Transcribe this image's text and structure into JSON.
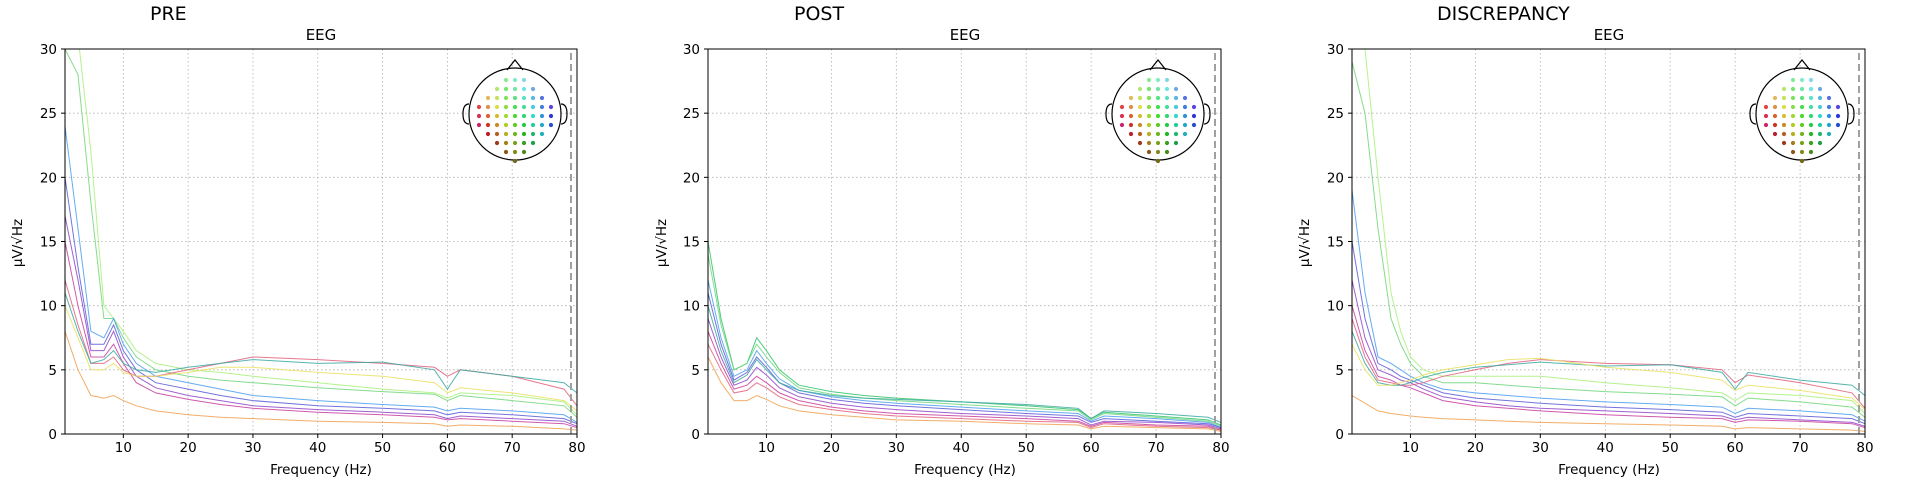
{
  "charts": [
    {
      "title": "PRE"
    },
    {
      "title": "POST"
    },
    {
      "title": "DISCREPANCY"
    }
  ],
  "chart_data": [
    {
      "type": "line",
      "title": "PRE",
      "subtitle": "EEG",
      "xlabel": "Frequency (Hz)",
      "ylabel": "µV/√Hz",
      "xlim": [
        1,
        80
      ],
      "ylim": [
        0,
        30
      ],
      "xticks": [
        "10",
        "20",
        "30",
        "40",
        "50",
        "60",
        "70",
        "80"
      ],
      "yticks": [
        "0",
        "5",
        "10",
        "15",
        "20",
        "25",
        "30"
      ],
      "grid": true,
      "legend": "sensor-location-inset top-right",
      "x": [
        1,
        3,
        5,
        7,
        8.5,
        10,
        12,
        15,
        20,
        25,
        30,
        40,
        50,
        58,
        60,
        62,
        70,
        78,
        80
      ],
      "series": [
        {
          "color": "#a8f07a",
          "values": [
            31,
            31,
            22,
            10,
            9,
            8,
            6.5,
            5.5,
            5,
            4.8,
            4.5,
            4,
            3.5,
            3.2,
            2.8,
            3.2,
            3,
            2.5,
            1.5
          ]
        },
        {
          "color": "#6fd67a",
          "values": [
            30,
            28,
            18,
            9,
            9,
            7.5,
            6,
            5,
            4.5,
            4.2,
            4,
            3.6,
            3.3,
            3.1,
            2.6,
            3,
            2.6,
            2.2,
            1.3
          ]
        },
        {
          "color": "#4a9ef0",
          "values": [
            24,
            16,
            8,
            7.5,
            9,
            7,
            5.5,
            4.5,
            4,
            3.5,
            3,
            2.6,
            2.3,
            2.1,
            1.8,
            2,
            1.8,
            1.5,
            0.9
          ]
        },
        {
          "color": "#5a5ad8",
          "values": [
            20,
            13,
            7,
            7,
            8.5,
            6.5,
            5,
            4,
            3.5,
            3,
            2.6,
            2.2,
            2,
            1.8,
            1.5,
            1.7,
            1.5,
            1.2,
            0.8
          ]
        },
        {
          "color": "#8e44c8",
          "values": [
            17,
            12,
            6.5,
            6.5,
            8,
            6,
            4.5,
            3.6,
            3,
            2.6,
            2.2,
            1.9,
            1.7,
            1.5,
            1.2,
            1.4,
            1.2,
            1,
            0.6
          ]
        },
        {
          "color": "#c83c9e",
          "values": [
            15,
            10,
            6,
            6,
            7,
            5.5,
            4,
            3.2,
            2.7,
            2.3,
            2,
            1.7,
            1.5,
            1.3,
            1.1,
            1.2,
            1,
            0.8,
            0.5
          ]
        },
        {
          "color": "#e0607a",
          "values": [
            12,
            8.5,
            5.5,
            5.5,
            6,
            5,
            4.5,
            4.5,
            5,
            5.5,
            6,
            5.8,
            5.5,
            5.2,
            4.5,
            5,
            4.5,
            3.5,
            2.2
          ]
        },
        {
          "color": "#38a8a0",
          "values": [
            11,
            8,
            5.5,
            5.8,
            6.5,
            5.5,
            5,
            4.8,
            5.2,
            5.5,
            5.8,
            5.5,
            5.6,
            5,
            3.5,
            5,
            4.5,
            4,
            3.2
          ]
        },
        {
          "color": "#e8e060",
          "values": [
            10,
            7.5,
            5,
            5,
            5.5,
            4.8,
            4.5,
            4.5,
            4.8,
            5.2,
            5.2,
            4.8,
            4.5,
            4,
            3.2,
            3.6,
            3.2,
            2.6,
            1.8
          ]
        },
        {
          "color": "#f0a050",
          "values": [
            8,
            5,
            3,
            2.8,
            3,
            2.6,
            2.2,
            1.8,
            1.5,
            1.3,
            1.2,
            1,
            0.9,
            0.8,
            0.6,
            0.7,
            0.6,
            0.4,
            0.3
          ]
        }
      ]
    },
    {
      "type": "line",
      "title": "POST",
      "subtitle": "EEG",
      "xlabel": "Frequency (Hz)",
      "ylabel": "µV/√Hz",
      "xlim": [
        1,
        80
      ],
      "ylim": [
        0,
        30
      ],
      "xticks": [
        "10",
        "20",
        "30",
        "40",
        "50",
        "60",
        "70",
        "80"
      ],
      "yticks": [
        "0",
        "5",
        "10",
        "15",
        "20",
        "25",
        "30"
      ],
      "grid": true,
      "legend": "sensor-location-inset top-right",
      "x": [
        1,
        3,
        5,
        7,
        8.5,
        10,
        12,
        15,
        20,
        25,
        30,
        40,
        50,
        58,
        60,
        62,
        70,
        78,
        80
      ],
      "series": [
        {
          "color": "#2fc26a",
          "values": [
            15,
            9,
            5,
            5.5,
            7.5,
            6.5,
            5,
            3.8,
            3.3,
            3,
            2.8,
            2.5,
            2.2,
            1.9,
            1.2,
            1.7,
            1.4,
            1.1,
            0.7
          ]
        },
        {
          "color": "#6fd67a",
          "values": [
            14,
            8.5,
            5,
            5.5,
            7,
            6,
            4.8,
            3.6,
            3.1,
            2.8,
            2.6,
            2.3,
            2,
            1.8,
            1.1,
            1.6,
            1.3,
            1,
            0.6
          ]
        },
        {
          "color": "#4a9ef0",
          "values": [
            12,
            7.5,
            4.5,
            5,
            6.5,
            5.5,
            4.3,
            3.4,
            2.9,
            2.6,
            2.4,
            2.1,
            1.8,
            1.6,
            1,
            1.4,
            1.2,
            0.9,
            0.5
          ]
        },
        {
          "color": "#5a5ad8",
          "values": [
            11,
            7,
            4.2,
            4.8,
            6,
            5.2,
            4,
            3.2,
            2.7,
            2.4,
            2.2,
            1.9,
            1.6,
            1.4,
            0.9,
            1.2,
            1,
            0.8,
            0.5
          ]
        },
        {
          "color": "#38a8a0",
          "values": [
            10,
            6.5,
            4,
            4.6,
            5.8,
            5,
            4,
            3.4,
            3,
            2.8,
            2.7,
            2.5,
            2.3,
            2,
            1.2,
            1.8,
            1.6,
            1.3,
            0.9
          ]
        },
        {
          "color": "#8e44c8",
          "values": [
            9,
            6,
            3.8,
            4.2,
            5.2,
            4.6,
            3.6,
            2.9,
            2.4,
            2.1,
            1.9,
            1.6,
            1.4,
            1.2,
            0.7,
            1,
            0.9,
            0.7,
            0.4
          ]
        },
        {
          "color": "#c83c9e",
          "values": [
            8,
            5.5,
            3.5,
            3.8,
            4.5,
            4,
            3.2,
            2.6,
            2.1,
            1.8,
            1.6,
            1.4,
            1.2,
            1,
            0.6,
            0.9,
            0.7,
            0.6,
            0.3
          ]
        },
        {
          "color": "#e0607a",
          "values": [
            7,
            5,
            3.2,
            3.4,
            4,
            3.6,
            2.9,
            2.3,
            1.9,
            1.6,
            1.4,
            1.2,
            1,
            0.9,
            0.5,
            0.8,
            0.6,
            0.5,
            0.3
          ]
        },
        {
          "color": "#f0a050",
          "values": [
            6,
            4,
            2.6,
            2.6,
            3,
            2.7,
            2.2,
            1.8,
            1.5,
            1.3,
            1.1,
            1,
            0.8,
            0.7,
            0.4,
            0.6,
            0.5,
            0.4,
            0.2
          ]
        }
      ]
    },
    {
      "type": "line",
      "title": "DISCREPANCY",
      "subtitle": "EEG",
      "xlabel": "Frequency (Hz)",
      "ylabel": "µV/√Hz",
      "xlim": [
        1,
        80
      ],
      "ylim": [
        0,
        30
      ],
      "xticks": [
        "10",
        "20",
        "30",
        "40",
        "50",
        "60",
        "70",
        "80"
      ],
      "yticks": [
        "0",
        "5",
        "10",
        "15",
        "20",
        "25",
        "30"
      ],
      "grid": true,
      "legend": "sensor-location-inset top-right",
      "x": [
        1,
        3,
        5,
        7,
        8.5,
        10,
        12,
        15,
        20,
        25,
        30,
        40,
        50,
        58,
        60,
        62,
        70,
        78,
        80
      ],
      "series": [
        {
          "color": "#a8f07a",
          "values": [
            31,
            30,
            20,
            11,
            8,
            6,
            5,
            4.5,
            4.5,
            4.5,
            4.5,
            4,
            3.6,
            3.2,
            2.6,
            3.2,
            3,
            2.6,
            1.6
          ]
        },
        {
          "color": "#6fd67a",
          "values": [
            29,
            25,
            16,
            9,
            7,
            5.5,
            4.5,
            4,
            4,
            3.8,
            3.6,
            3.3,
            3.1,
            2.9,
            2.2,
            2.8,
            2.5,
            2.1,
            1.3
          ]
        },
        {
          "color": "#4a9ef0",
          "values": [
            19,
            11,
            6,
            5.5,
            5,
            4.5,
            4,
            3.5,
            3.2,
            3,
            2.8,
            2.5,
            2.3,
            2.1,
            1.6,
            2,
            1.8,
            1.5,
            1
          ]
        },
        {
          "color": "#5a5ad8",
          "values": [
            15,
            9,
            5.5,
            5,
            4.5,
            4.2,
            3.8,
            3.2,
            2.8,
            2.6,
            2.4,
            2.1,
            1.9,
            1.7,
            1.3,
            1.6,
            1.4,
            1.2,
            0.8
          ]
        },
        {
          "color": "#8e44c8",
          "values": [
            12,
            7.5,
            5,
            4.6,
            4.2,
            4,
            3.5,
            2.9,
            2.5,
            2.2,
            2,
            1.8,
            1.6,
            1.4,
            1.1,
            1.3,
            1.1,
            0.9,
            0.6
          ]
        },
        {
          "color": "#c83c9e",
          "values": [
            10,
            6.5,
            4.5,
            4.2,
            3.8,
            3.6,
            3.2,
            2.6,
            2.2,
            2,
            1.8,
            1.5,
            1.3,
            1.2,
            0.9,
            1.1,
            1,
            0.8,
            0.5
          ]
        },
        {
          "color": "#e0607a",
          "values": [
            9,
            6,
            4.2,
            4,
            3.8,
            3.8,
            4,
            4.5,
            5,
            5.5,
            5.8,
            5.5,
            5.4,
            5,
            4,
            4.6,
            4,
            3.2,
            2
          ]
        },
        {
          "color": "#38a8a0",
          "values": [
            8,
            5.5,
            4,
            3.8,
            3.8,
            4,
            4.4,
            4.8,
            5.2,
            5.4,
            5.6,
            5.3,
            5.4,
            4.8,
            3.5,
            4.8,
            4.2,
            3.8,
            3
          ]
        },
        {
          "color": "#e8e060",
          "values": [
            7,
            5,
            3.8,
            3.8,
            4,
            4.2,
            4.6,
            5,
            5.4,
            5.8,
            5.9,
            5.2,
            4.8,
            4.2,
            3.4,
            3.8,
            3.4,
            2.8,
            1.9
          ]
        },
        {
          "color": "#f0a050",
          "values": [
            3,
            2.4,
            1.8,
            1.6,
            1.5,
            1.4,
            1.3,
            1.2,
            1.1,
            1,
            0.9,
            0.8,
            0.7,
            0.6,
            0.4,
            0.5,
            0.4,
            0.3,
            0.2
          ]
        }
      ]
    }
  ]
}
